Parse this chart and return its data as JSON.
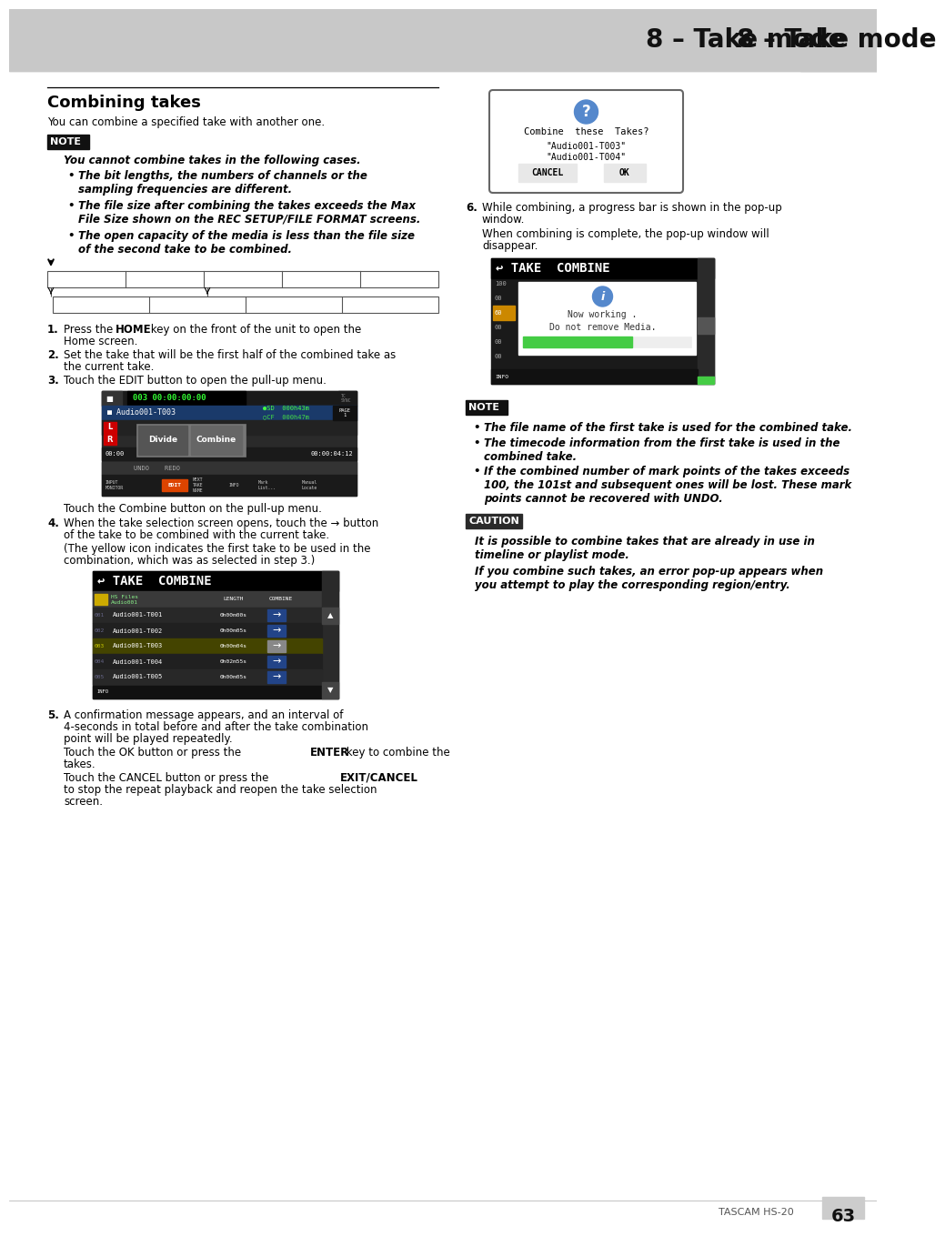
{
  "page_bg": "#ffffff",
  "header_bg": "#c8c8c8",
  "header_text": "8 – Take mode",
  "section_title": "Combining takes",
  "intro_text": "You can combine a specified take with another one.",
  "note_label": "NOTE",
  "note_italic_text": "You cannot combine takes in the following cases.",
  "note_bullets": [
    "The bit lengths, the numbers of channels or the\nsampling frequencies are different.",
    "The file size after combining the takes exceeds the Max\nFile Size shown on the REC SETUP/FILE FORMAT screens.",
    "The open capacity of the media is less than the file size\nof the second take to be combined."
  ],
  "step1": [
    "Press the ",
    "HOME",
    " key on the front of the unit to open the\nHome screen."
  ],
  "step2": "Set the take that will be the first half of the combined take as\nthe current take.",
  "step3": "Touch the EDIT button to open the pull-up menu.",
  "touch_combine": "Touch the Combine button on the pull-up menu.",
  "step4a": "When the take selection screen opens, touch the → button\nof the take to be combined with the current take.",
  "step4b": "(The yellow icon indicates the first take to be used in the\ncombination, which was as selected in step 3.)",
  "step5a": "A confirmation message appears, and an interval of\n4-seconds in total before and after the take combination\npoint will be played repeatedly.",
  "step5b1": "Touch the OK button or press the ",
  "step5b2": "ENTER",
  "step5b3": " key to combine the\ntakes.",
  "step5c1": "Touch the CANCEL button or press the ",
  "step5c2": "EXIT/CANCEL",
  "step5c3": " key\nto stop the repeat playback and reopen the take selection\nscreen.",
  "step6a": "While combining, a progress bar is shown in the pop-up\nwindow.",
  "step6b": "When combining is complete, the pop-up window will\ndisappear.",
  "note2_bullets": [
    "The file name of the first take is used for the combined take.",
    "The timecode information from the first take is used in the\ncombined take.",
    "If the combined number of mark points of the takes exceeds\n100, the 101st and subsequent ones will be lost. These mark\npoints cannot be recovered with UNDO."
  ],
  "caution_lines": [
    "It is possible to combine takes that are already in use in\ntimeline or playlist mode.",
    "If you combine such takes, an error pop-up appears when\nyou attempt to play the corresponding region/entry."
  ],
  "footer_text": "TASCAM HS-20",
  "footer_page": "63",
  "files": [
    [
      "001",
      "Audio001-T001",
      "0h00m00s",
      false
    ],
    [
      "002",
      "Audio001-T002",
      "0h00m05s",
      false
    ],
    [
      "003",
      "Audio001-T003",
      "0h00m04s",
      true
    ],
    [
      "004",
      "Audio001-T004",
      "0h02m55s",
      false
    ],
    [
      "005",
      "Audio001-T005",
      "0h00m05s",
      false
    ]
  ]
}
